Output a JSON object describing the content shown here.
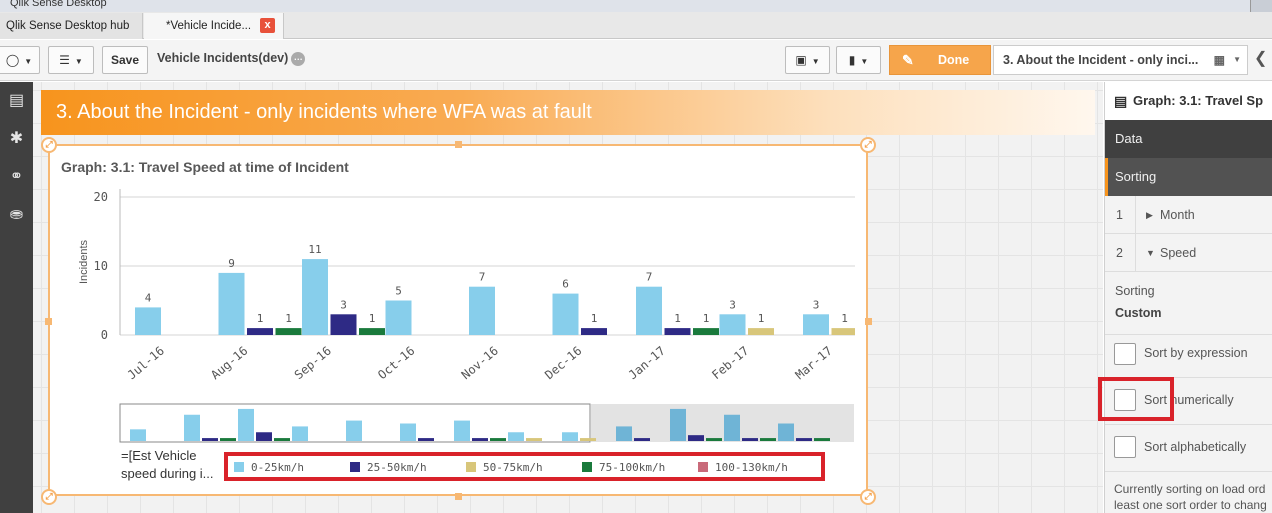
{
  "window": {
    "title": "Qlik Sense Desktop"
  },
  "tabs": [
    {
      "label": "Qlik Sense Desktop hub"
    },
    {
      "label": "*Vehicle Incide...",
      "close": "x"
    }
  ],
  "toolbar": {
    "save_label": "Save",
    "app_title": "Vehicle Incidents(dev)",
    "done_label": "Done",
    "sheet_selector": "3. About the Incident - only inci..."
  },
  "sheet": {
    "title": "3. About the Incident - only incidents where WFA was at fault"
  },
  "chart_data": {
    "type": "bar",
    "title": "Graph: 3.1: Travel Speed at time of Incident",
    "ylabel": "Incidents",
    "ylim": [
      0,
      20
    ],
    "yticks": [
      "0",
      "10",
      "20"
    ],
    "categories": [
      "Jul-16",
      "Aug-16",
      "Sep-16",
      "Oct-16",
      "Nov-16",
      "Dec-16",
      "Jan-17",
      "Feb-17",
      "Mar-17"
    ],
    "series": [
      {
        "name": "0-25km/h",
        "color": "#87ceeb",
        "values": [
          4,
          9,
          11,
          5,
          7,
          6,
          7,
          3,
          3
        ]
      },
      {
        "name": "25-50km/h",
        "color": "#2e2a85",
        "values": [
          null,
          1,
          3,
          null,
          null,
          1,
          1,
          null,
          null
        ]
      },
      {
        "name": "50-75km/h",
        "color": "#d8c67a",
        "values": [
          null,
          null,
          null,
          null,
          null,
          null,
          null,
          1,
          1
        ]
      },
      {
        "name": "75-100km/h",
        "color": "#1a7a3c",
        "values": [
          null,
          1,
          1,
          null,
          null,
          null,
          1,
          null,
          null
        ]
      },
      {
        "name": "100-130km/h",
        "color": "#c96a7a",
        "values": [
          null,
          null,
          null,
          null,
          null,
          null,
          null,
          null,
          null
        ]
      }
    ],
    "minimap": [
      [
        2,
        null,
        null,
        null
      ],
      [
        4.5,
        0.5,
        null,
        0.5
      ],
      [
        5.5,
        1.5,
        null,
        0.5
      ],
      [
        2.5,
        null,
        null,
        null
      ],
      [
        3.5,
        null,
        null,
        null
      ],
      [
        3,
        0.5,
        null,
        null
      ],
      [
        3.5,
        0.5,
        null,
        0.5
      ],
      [
        1.5,
        null,
        0.5,
        null
      ],
      [
        1.5,
        null,
        0.5,
        null
      ],
      [
        2.5,
        0.5,
        null,
        null
      ],
      [
        5.5,
        1,
        null,
        0.5
      ],
      [
        4.5,
        0.5,
        null,
        0.5
      ],
      [
        3,
        0.5,
        null,
        0.5
      ]
    ],
    "dimension_label": "=[Est Vehicle speed during i..."
  },
  "properties": {
    "header": "Graph: 3.1: Travel Sp",
    "sections": {
      "data": "Data",
      "sorting": "Sorting"
    },
    "sort_items": [
      {
        "num": "1",
        "label": "Month"
      },
      {
        "num": "2",
        "label": "Speed"
      }
    ],
    "sorting_label": "Sorting",
    "sorting_value": "Custom",
    "options": {
      "by_expression": "Sort by expression",
      "numerically": "Sort numerically",
      "alphabetically": "Sort alphabetically"
    },
    "note_line1": "Currently sorting on load ord",
    "note_line2": "least one sort order to chang"
  }
}
